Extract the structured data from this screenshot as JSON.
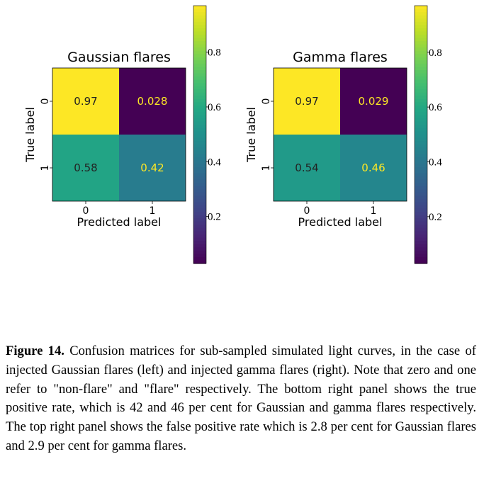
{
  "chart_data": [
    {
      "type": "heatmap",
      "title": "Gaussian flares",
      "xlabel": "Predicted label",
      "ylabel": "True label",
      "x_categories": [
        "0",
        "1"
      ],
      "y_categories": [
        "0",
        "1"
      ],
      "values": [
        [
          0.97,
          0.028
        ],
        [
          0.58,
          0.42
        ]
      ],
      "cell_labels": [
        [
          "0.97",
          "0.028"
        ],
        [
          "0.58",
          "0.42"
        ]
      ],
      "colormap": "viridis",
      "colorbar_range": [
        0.028,
        0.97
      ],
      "colorbar_ticks": [
        0.2,
        0.4,
        0.6,
        0.8
      ],
      "colorbar_tick_labels": [
        "0.2",
        "0.4",
        "0.6",
        "0.8"
      ]
    },
    {
      "type": "heatmap",
      "title": "Gamma flares",
      "xlabel": "Predicted label",
      "ylabel": "True label",
      "x_categories": [
        "0",
        "1"
      ],
      "y_categories": [
        "0",
        "1"
      ],
      "values": [
        [
          0.97,
          0.029
        ],
        [
          0.54,
          0.46
        ]
      ],
      "cell_labels": [
        [
          "0.97",
          "0.029"
        ],
        [
          "0.54",
          "0.46"
        ]
      ],
      "colormap": "viridis",
      "colorbar_range": [
        0.029,
        0.97
      ],
      "colorbar_ticks": [
        0.2,
        0.4,
        0.6,
        0.8
      ],
      "colorbar_tick_labels": [
        "0.2",
        "0.4",
        "0.6",
        "0.8"
      ]
    }
  ],
  "caption": {
    "label": "Figure 14.",
    "text": "Confusion matrices for sub-sampled simulated light curves, in the case of injected Gaussian flares (left) and injected gamma flares (right). Note that zero and one refer to \"non-flare\" and \"flare\" respectively. The bottom right panel shows the true positive rate, which is 42 and 46 per cent for Gaussian and gamma flares respectively. The top right panel shows the false positive rate which is 2.8 per cent for Gaussian flares and 2.9 per cent for gamma flares."
  }
}
